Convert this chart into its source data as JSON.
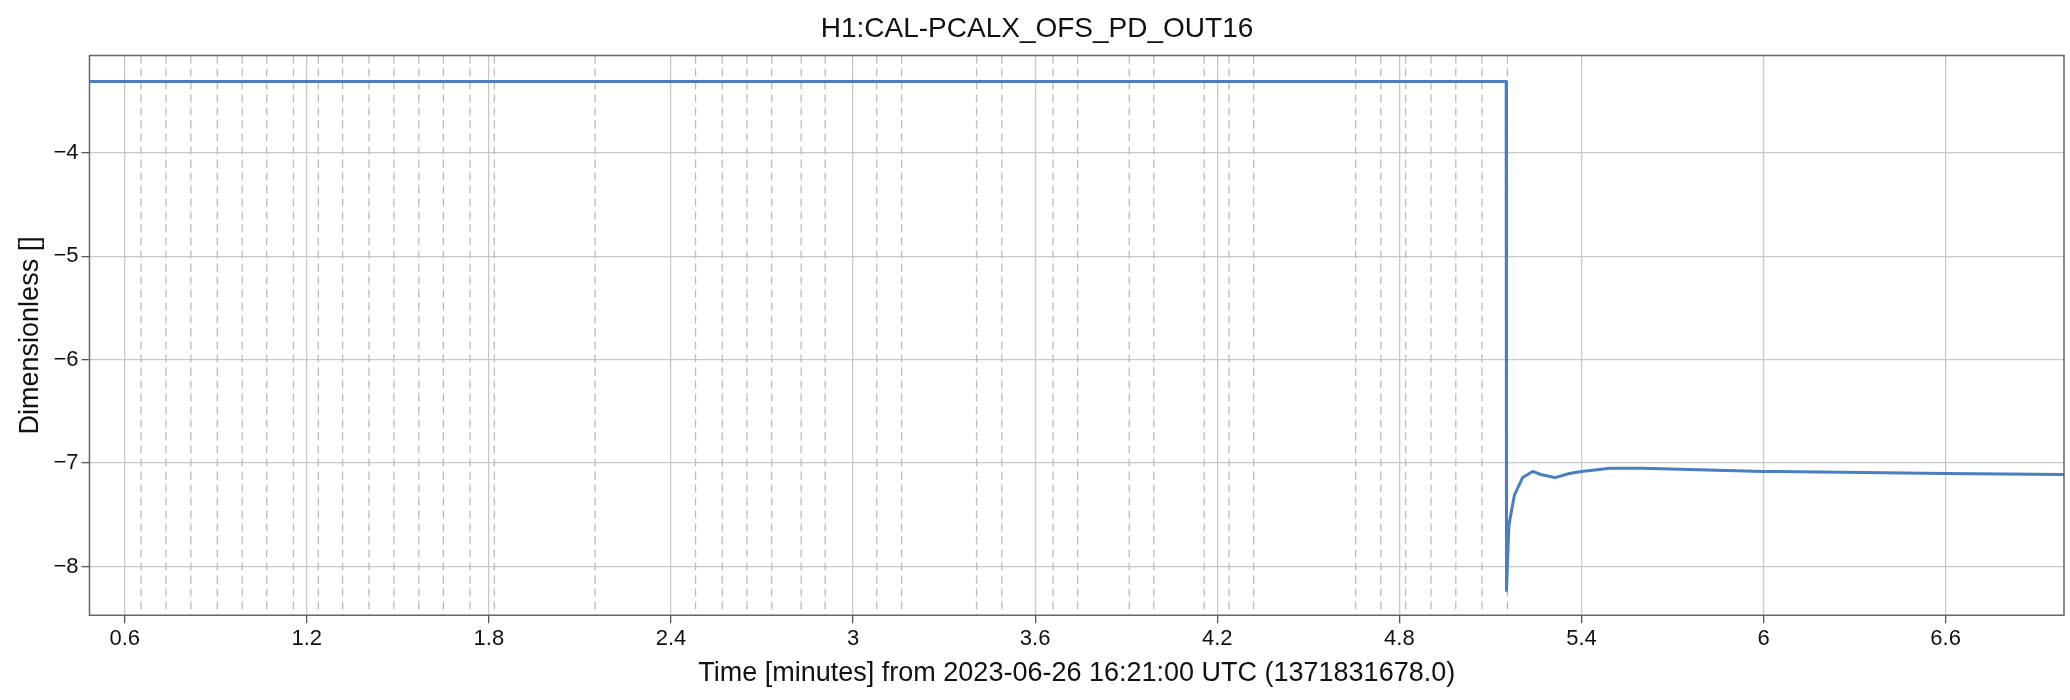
{
  "chart_data": {
    "type": "line",
    "title": "H1:CAL-PCALX_OFS_PD_OUT16",
    "xlabel": "Time [minutes] from 2023-06-26 16:21:00 UTC (1371831678.0)",
    "ylabel": "Dimensionless []",
    "xlim": [
      0.484,
      6.99
    ],
    "xticks": [
      0.6,
      1.2,
      1.8,
      2.4,
      3,
      3.6,
      4.2,
      4.8,
      5.4,
      6,
      6.6
    ],
    "ylim": [
      -8.47,
      -3.06
    ],
    "yticks": [
      -8,
      -7,
      -6,
      -5,
      -4
    ],
    "grid": true,
    "legend": false,
    "marker": "none",
    "line_style": "solid",
    "series": [
      {
        "color": "#4a7fbf",
        "x": [
          0.484,
          5.152,
          5.153,
          5.161,
          5.179,
          5.206,
          5.239,
          5.266,
          5.313,
          5.36,
          5.4,
          5.494,
          5.6,
          6.0,
          6.6,
          6.99
        ],
        "values": [
          -3.31,
          -3.31,
          -8.23,
          -7.6,
          -7.31,
          -7.14,
          -7.08,
          -7.11,
          -7.14,
          -7.1,
          -7.08,
          -7.05,
          -7.05,
          -7.08,
          -7.1,
          -7.11
        ]
      }
    ],
    "ref_lines": [
      {
        "axis": "x",
        "value": 0.654,
        "color": "#bbbbbb",
        "line_style": "dashed"
      },
      {
        "axis": "x",
        "value": 0.736,
        "color": "#bbbbbb",
        "line_style": "dashed"
      },
      {
        "axis": "x",
        "value": 0.818,
        "color": "#bbbbbb",
        "line_style": "dashed"
      },
      {
        "axis": "x",
        "value": 0.905,
        "color": "#bbbbbb",
        "line_style": "dashed"
      },
      {
        "axis": "x",
        "value": 0.987,
        "color": "#bbbbbb",
        "line_style": "dashed"
      },
      {
        "axis": "x",
        "value": 1.068,
        "color": "#bbbbbb",
        "line_style": "dashed"
      },
      {
        "axis": "x",
        "value": 1.156,
        "color": "#bbbbbb",
        "line_style": "dashed"
      },
      {
        "axis": "x",
        "value": 1.238,
        "color": "#bbbbbb",
        "line_style": "dashed"
      },
      {
        "axis": "x",
        "value": 1.318,
        "color": "#bbbbbb",
        "line_style": "dashed"
      },
      {
        "axis": "x",
        "value": 1.405,
        "color": "#bbbbbb",
        "line_style": "dashed"
      },
      {
        "axis": "x",
        "value": 1.487,
        "color": "#bbbbbb",
        "line_style": "dashed"
      },
      {
        "axis": "x",
        "value": 1.569,
        "color": "#bbbbbb",
        "line_style": "dashed"
      },
      {
        "axis": "x",
        "value": 1.65,
        "color": "#bbbbbb",
        "line_style": "dashed"
      },
      {
        "axis": "x",
        "value": 1.738,
        "color": "#bbbbbb",
        "line_style": "dashed"
      },
      {
        "axis": "x",
        "value": 1.818,
        "color": "#bbbbbb",
        "line_style": "dashed"
      },
      {
        "axis": "x",
        "value": 2.15,
        "color": "#bbbbbb",
        "line_style": "dashed"
      },
      {
        "axis": "x",
        "value": 2.481,
        "color": "#bbbbbb",
        "line_style": "dashed"
      },
      {
        "axis": "x",
        "value": 2.569,
        "color": "#bbbbbb",
        "line_style": "dashed"
      },
      {
        "axis": "x",
        "value": 2.65,
        "color": "#bbbbbb",
        "line_style": "dashed"
      },
      {
        "axis": "x",
        "value": 2.732,
        "color": "#bbbbbb",
        "line_style": "dashed"
      },
      {
        "axis": "x",
        "value": 2.829,
        "color": "#bbbbbb",
        "line_style": "dashed"
      },
      {
        "axis": "x",
        "value": 2.908,
        "color": "#bbbbbb",
        "line_style": "dashed"
      },
      {
        "axis": "x",
        "value": 3.078,
        "color": "#bbbbbb",
        "line_style": "dashed"
      },
      {
        "axis": "x",
        "value": 3.16,
        "color": "#bbbbbb",
        "line_style": "dashed"
      },
      {
        "axis": "x",
        "value": 3.407,
        "color": "#bbbbbb",
        "line_style": "dashed"
      },
      {
        "axis": "x",
        "value": 3.49,
        "color": "#bbbbbb",
        "line_style": "dashed"
      },
      {
        "axis": "x",
        "value": 3.659,
        "color": "#bbbbbb",
        "line_style": "dashed"
      },
      {
        "axis": "x",
        "value": 3.74,
        "color": "#bbbbbb",
        "line_style": "dashed"
      },
      {
        "axis": "x",
        "value": 3.91,
        "color": "#bbbbbb",
        "line_style": "dashed"
      },
      {
        "axis": "x",
        "value": 3.991,
        "color": "#bbbbbb",
        "line_style": "dashed"
      },
      {
        "axis": "x",
        "value": 4.157,
        "color": "#bbbbbb",
        "line_style": "dashed"
      },
      {
        "axis": "x",
        "value": 4.239,
        "color": "#bbbbbb",
        "line_style": "dashed"
      },
      {
        "axis": "x",
        "value": 4.32,
        "color": "#bbbbbb",
        "line_style": "dashed"
      },
      {
        "axis": "x",
        "value": 4.656,
        "color": "#bbbbbb",
        "line_style": "dashed"
      },
      {
        "axis": "x",
        "value": 4.739,
        "color": "#bbbbbb",
        "line_style": "dashed"
      },
      {
        "axis": "x",
        "value": 4.821,
        "color": "#bbbbbb",
        "line_style": "dashed"
      },
      {
        "axis": "x",
        "value": 4.904,
        "color": "#bbbbbb",
        "line_style": "dashed"
      },
      {
        "axis": "x",
        "value": 4.986,
        "color": "#bbbbbb",
        "line_style": "dashed"
      },
      {
        "axis": "x",
        "value": 5.072,
        "color": "#bbbbbb",
        "line_style": "dashed"
      },
      {
        "axis": "x",
        "value": 5.156,
        "color": "#bbbbbb",
        "line_style": "dashed"
      }
    ]
  }
}
